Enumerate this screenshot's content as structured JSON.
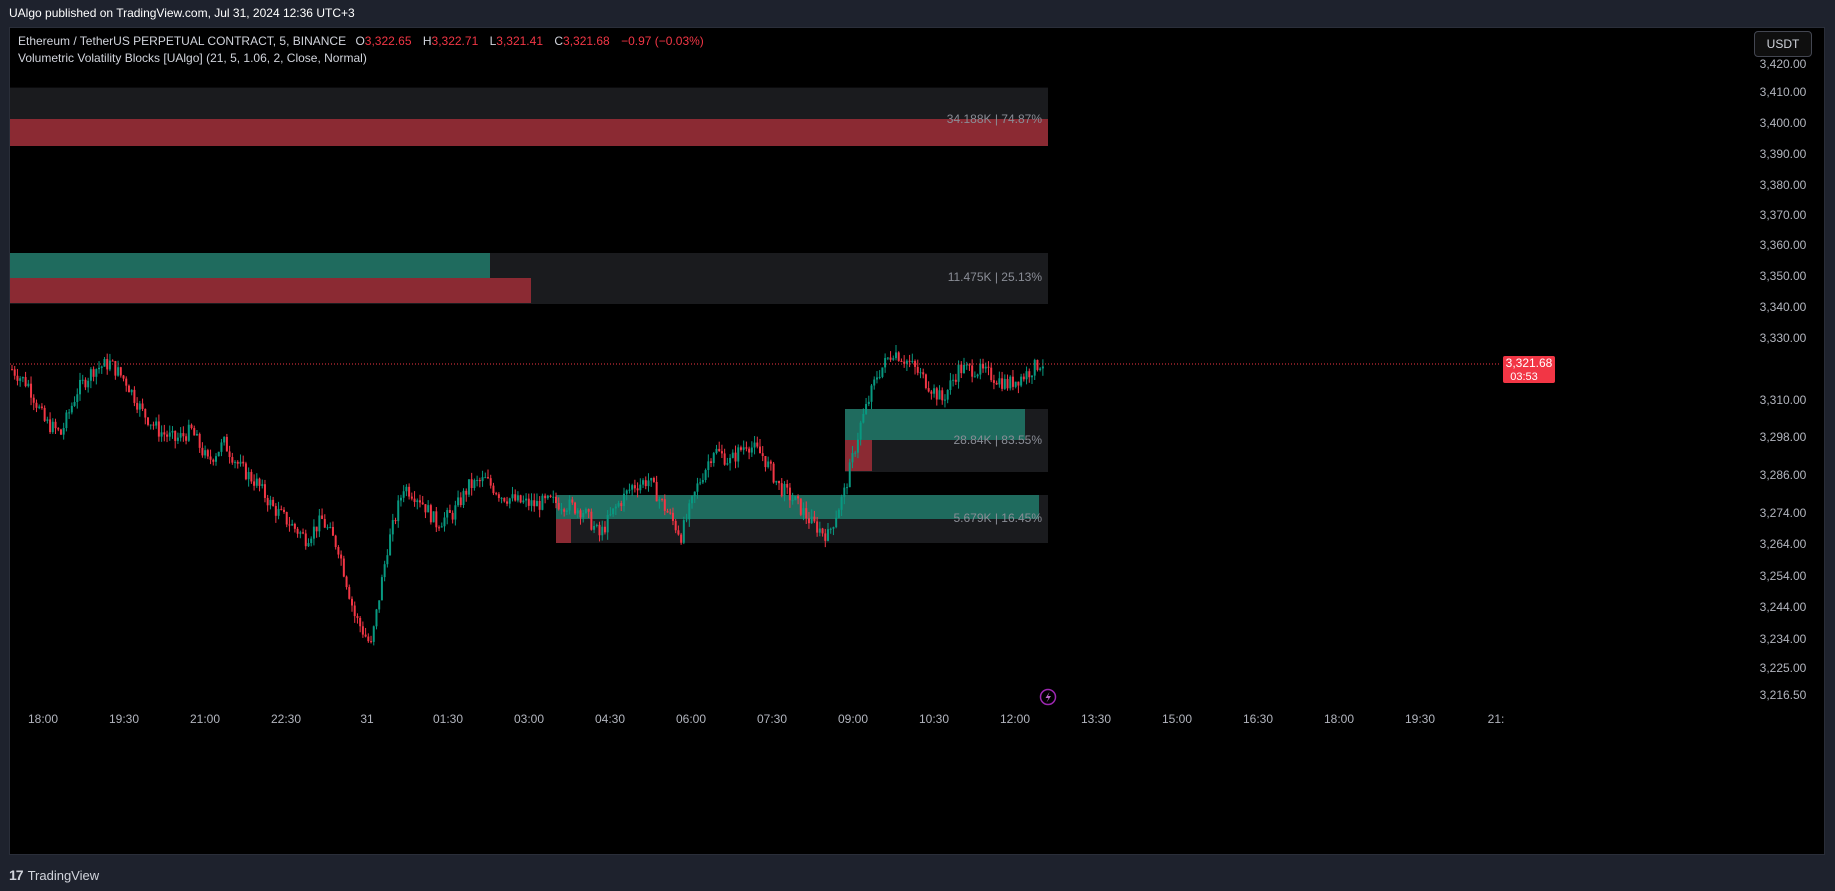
{
  "header": {
    "publisher_text": "UAlgo published on TradingView.com, Jul 31, 2024 12:36 UTC+3"
  },
  "legend": {
    "symbol": "Ethereum / TetherUS PERPETUAL CONTRACT, 5, BINANCE",
    "open_label": "O",
    "open_value": "3,322.65",
    "high_label": "H",
    "high_value": "3,322.71",
    "low_label": "L",
    "low_value": "3,321.41",
    "close_label": "C",
    "close_value": "3,321.68",
    "change": "−0.97 (−0.03%)",
    "indicator": "Volumetric Volatility Blocks [UAlgo] (21, 5, 1.06, 2, Close, Normal)"
  },
  "currency_button": "USDT",
  "price_axis": {
    "labels": [
      "3,420.00",
      "3,410.00",
      "3,400.00",
      "3,390.00",
      "3,380.00",
      "3,370.00",
      "3,360.00",
      "3,350.00",
      "3,340.00",
      "3,330.00",
      "3,310.00",
      "3,298.00",
      "3,286.00",
      "3,274.00",
      "3,264.00",
      "3,254.00",
      "3,244.00",
      "3,234.00",
      "3,225.00",
      "3,216.50"
    ],
    "current_price": "3,321.68",
    "countdown": "03:53"
  },
  "time_axis": {
    "labels": [
      "18:00",
      "19:30",
      "21:00",
      "22:30",
      "31",
      "01:30",
      "03:00",
      "04:30",
      "06:00",
      "07:30",
      "09:00",
      "10:30",
      "12:00",
      "13:30",
      "15:00",
      "16:30",
      "18:00",
      "19:30",
      "21:"
    ]
  },
  "blocks": [
    {
      "text": "34.188K | 74.87%"
    },
    {
      "text": "11.475K | 25.13%"
    },
    {
      "text": "28.84K | 83.55%"
    },
    {
      "text": "5.679K | 16.45%"
    }
  ],
  "colors": {
    "up": "#089981",
    "down": "#f23645",
    "block_bull": "#1f6b5e",
    "block_bear": "#8b2a33",
    "block_bg": "#1a1b1e",
    "current_price_bg": "#f23645"
  },
  "footer": {
    "logo": "17",
    "brand": "TradingView"
  },
  "chart_data": {
    "type": "candlestick",
    "title": "Ethereum / TetherUS PERPETUAL CONTRACT, 5, BINANCE",
    "ohlc": {
      "open": 3322.65,
      "high": 3322.71,
      "low": 3321.41,
      "close": 3321.68
    },
    "last_price": 3321.68,
    "y_range": [
      3214,
      3424
    ],
    "volatility_blocks": [
      {
        "top": 3411.5,
        "bottom": 3393.5,
        "bull_volume": "34.188K",
        "bull_share": 74.87
      },
      {
        "top": 3357.5,
        "bottom": 3341,
        "bull_volume": "11.475K",
        "bear_share": 25.13
      },
      {
        "top": 3304.5,
        "bottom": 3288,
        "bull_volume": "28.84K",
        "bull_share": 83.55
      },
      {
        "top": 3280,
        "bottom": 3264,
        "bull_volume": "5.679K",
        "bear_share": 16.45
      }
    ],
    "close_path": [
      [
        0,
        3320
      ],
      [
        6,
        3315
      ],
      [
        12,
        3303
      ],
      [
        18,
        3299
      ],
      [
        24,
        3313
      ],
      [
        30,
        3320
      ],
      [
        36,
        3322
      ],
      [
        42,
        3316
      ],
      [
        48,
        3306
      ],
      [
        54,
        3300
      ],
      [
        60,
        3297
      ],
      [
        66,
        3300
      ],
      [
        72,
        3290
      ],
      [
        78,
        3296
      ],
      [
        84,
        3288
      ],
      [
        90,
        3283
      ],
      [
        96,
        3275
      ],
      [
        102,
        3270
      ],
      [
        108,
        3265
      ],
      [
        114,
        3271
      ],
      [
        120,
        3262
      ],
      [
        126,
        3240
      ],
      [
        132,
        3230
      ],
      [
        138,
        3262
      ],
      [
        144,
        3282
      ],
      [
        150,
        3278
      ],
      [
        156,
        3270
      ],
      [
        162,
        3273
      ],
      [
        168,
        3282
      ],
      [
        174,
        3284
      ],
      [
        180,
        3279
      ],
      [
        186,
        3277
      ],
      [
        192,
        3276
      ],
      [
        198,
        3277
      ],
      [
        204,
        3276
      ],
      [
        210,
        3274
      ],
      [
        216,
        3266
      ],
      [
        222,
        3275
      ],
      [
        228,
        3282
      ],
      [
        234,
        3284
      ],
      [
        240,
        3275
      ],
      [
        246,
        3266
      ],
      [
        252,
        3282
      ],
      [
        258,
        3294
      ],
      [
        264,
        3290
      ],
      [
        270,
        3296
      ],
      [
        276,
        3292
      ],
      [
        282,
        3282
      ],
      [
        288,
        3277
      ],
      [
        294,
        3270
      ],
      [
        300,
        3266
      ],
      [
        306,
        3280
      ],
      [
        312,
        3302
      ],
      [
        318,
        3318
      ],
      [
        324,
        3326
      ],
      [
        330,
        3322
      ],
      [
        336,
        3316
      ],
      [
        342,
        3310
      ],
      [
        348,
        3320
      ],
      [
        354,
        3320
      ],
      [
        360,
        3318
      ],
      [
        366,
        3315
      ],
      [
        372,
        3318
      ],
      [
        378,
        3322
      ]
    ]
  }
}
